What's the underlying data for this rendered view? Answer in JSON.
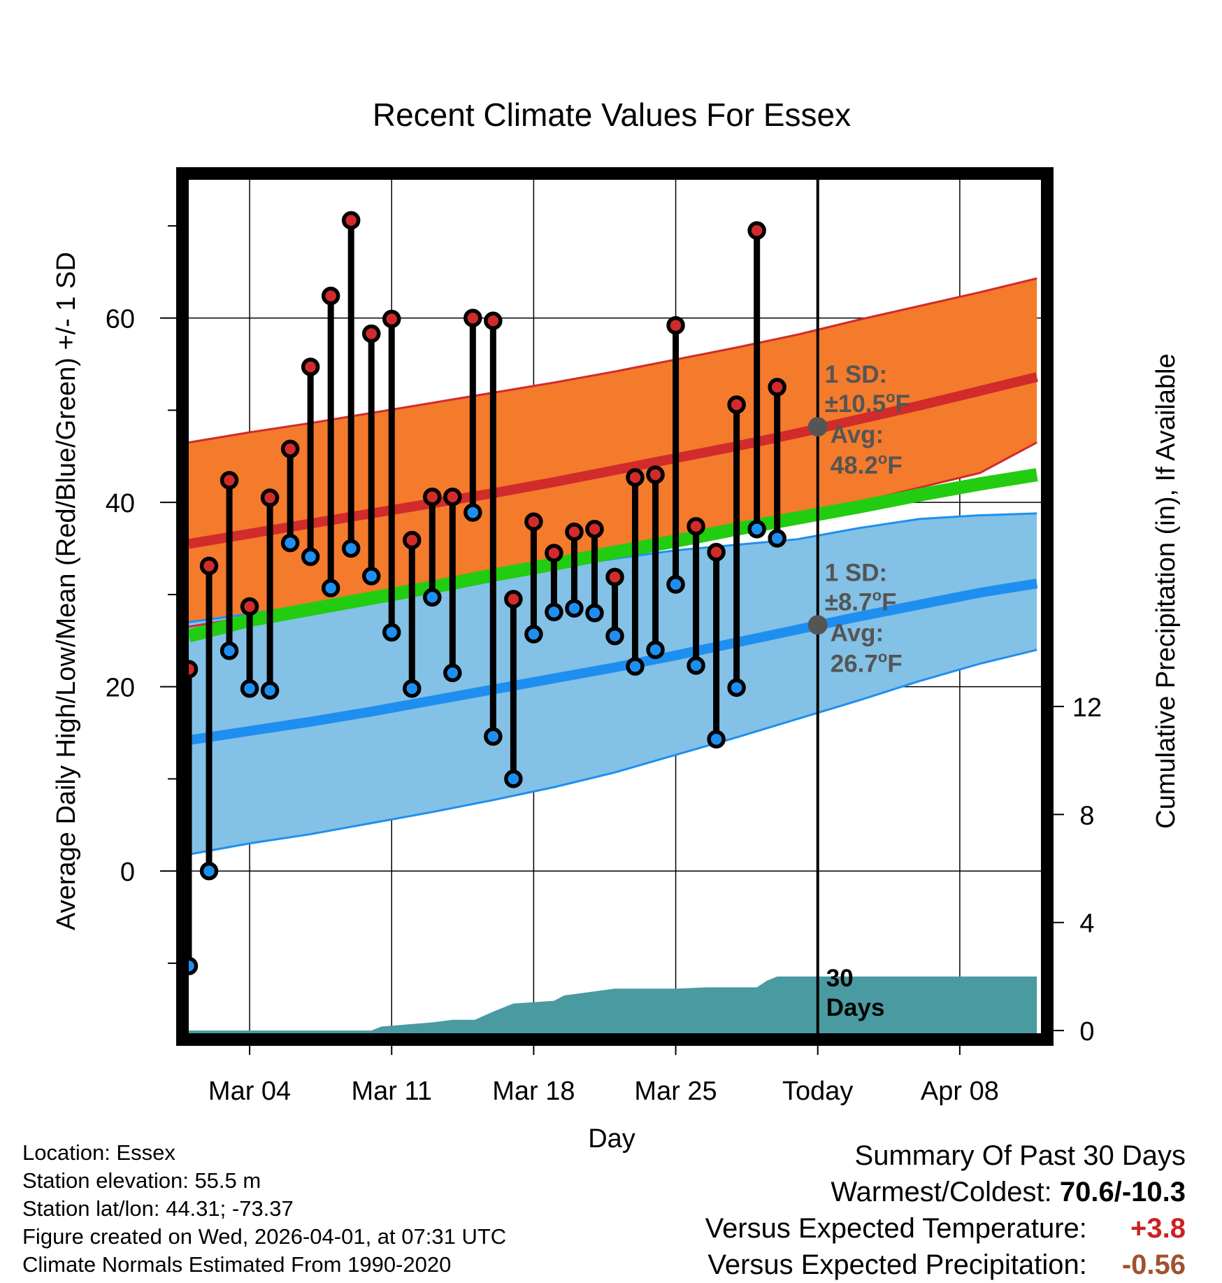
{
  "title": "Recent Climate Values For Essex",
  "colors": {
    "high_band": "#f47a2c",
    "high_line": "#d12b2b",
    "low_band": "#84c1e6",
    "low_line": "#1e8ff0",
    "mean_line": "#22cc11",
    "precip_fill": "#4a9aa2",
    "high_marker": "#d12b2b",
    "low_marker": "#1e8ff0",
    "today_marker": "#555555",
    "annotation": "#555555",
    "temp_anomaly": "#cc2222",
    "precip_anomaly": "#a0522d"
  },
  "chart_data": {
    "type": "line",
    "title": "Recent Climate Values For Essex",
    "xlabel": "Day",
    "ylabel": "Average Daily High/Low/Mean (Red/Blue/Green) +/- 1 SD",
    "y2label": "Cumulative Precipitation (in), If Available",
    "xlim": [
      0,
      42
    ],
    "ylim": [
      -17.6,
      75
    ],
    "y2lim": [
      -0.1,
      31.5
    ],
    "grid": true,
    "xticks": [
      {
        "x": 3,
        "label": "Mar 04"
      },
      {
        "x": 10,
        "label": "Mar 11"
      },
      {
        "x": 17,
        "label": "Mar 18"
      },
      {
        "x": 24,
        "label": "Mar 25"
      },
      {
        "x": 31,
        "label": "Today"
      },
      {
        "x": 38,
        "label": "Apr 08"
      }
    ],
    "yticks": [
      0,
      20,
      40,
      60
    ],
    "y_minor_ticks": [
      -10,
      10,
      30,
      50,
      70
    ],
    "y2ticks": [
      0,
      4,
      8,
      12
    ],
    "today_x": 31,
    "normals": {
      "x": [
        0,
        3,
        6,
        9,
        12,
        15,
        18,
        21,
        24,
        27,
        30,
        33,
        36,
        39,
        41.8
      ],
      "high_mean": [
        35.5,
        36.6,
        37.7,
        38.8,
        39.9,
        41.0,
        42.2,
        43.5,
        44.8,
        46.1,
        47.5,
        49.0,
        50.5,
        52.1,
        53.6
      ],
      "high_upper": [
        46.5,
        47.6,
        48.6,
        49.7,
        50.8,
        51.9,
        53.0,
        54.2,
        55.5,
        56.8,
        58.2,
        59.8,
        61.3,
        62.8,
        64.3
      ],
      "high_lower": [
        26.5,
        27.6,
        28.7,
        29.8,
        30.9,
        32.0,
        33.2,
        34.4,
        35.7,
        37.0,
        38.5,
        40.0,
        41.6,
        43.2,
        46.5
      ],
      "low_mean": [
        14.2,
        15.2,
        16.2,
        17.3,
        18.5,
        19.7,
        20.9,
        22.1,
        23.4,
        24.8,
        26.2,
        27.6,
        28.9,
        30.2,
        31.2
      ],
      "low_upper": [
        27.0,
        27.9,
        28.9,
        29.9,
        30.9,
        31.9,
        32.9,
        33.9,
        34.8,
        35.4,
        36.0,
        37.2,
        38.2,
        38.6,
        38.8
      ],
      "low_lower": [
        1.8,
        3.0,
        4.0,
        5.2,
        6.4,
        7.7,
        9.1,
        10.7,
        12.6,
        14.5,
        16.5,
        18.5,
        20.6,
        22.5,
        24.0
      ],
      "mean_line": [
        25.5,
        27.2,
        28.4,
        29.6,
        30.8,
        32.1,
        33.3,
        34.6,
        35.8,
        37.1,
        38.3,
        39.5,
        40.8,
        42.0,
        43.0
      ]
    },
    "series": [
      {
        "name": "High",
        "x": [
          0,
          1,
          2,
          3,
          4,
          5,
          6,
          7,
          8,
          9,
          10,
          11,
          12,
          13,
          14,
          15,
          16,
          17,
          18,
          19,
          20,
          21,
          22,
          23,
          24,
          25,
          26,
          27,
          28,
          29,
          30
        ],
        "values": [
          21.9,
          33.1,
          42.4,
          28.7,
          40.5,
          45.8,
          54.7,
          62.4,
          70.6,
          58.3,
          59.9,
          35.9,
          40.6,
          40.6,
          60.0,
          59.7,
          29.5,
          37.9,
          34.5,
          36.8,
          37.1,
          31.9,
          42.7,
          43.0,
          59.2,
          37.4,
          34.6,
          50.6,
          69.5,
          52.5,
          null
        ]
      },
      {
        "name": "Low",
        "x": [
          0,
          1,
          2,
          3,
          4,
          5,
          6,
          7,
          8,
          9,
          10,
          11,
          12,
          13,
          14,
          15,
          16,
          17,
          18,
          19,
          20,
          21,
          22,
          23,
          24,
          25,
          26,
          27,
          28,
          29,
          30
        ],
        "values": [
          -10.3,
          0.0,
          23.9,
          19.8,
          19.6,
          35.6,
          34.1,
          30.7,
          35.0,
          32.0,
          25.9,
          19.8,
          29.7,
          21.5,
          38.9,
          14.6,
          10.0,
          25.7,
          28.1,
          28.5,
          28.0,
          25.5,
          22.2,
          24.0,
          31.1,
          22.3,
          14.3,
          19.9,
          37.1,
          36.1,
          null
        ]
      }
    ],
    "precipitation": {
      "name": "Cumulative Precipitation",
      "x": [
        0,
        9,
        9.5,
        12,
        13,
        14.1,
        15,
        16,
        17,
        18,
        18.5,
        20,
        21,
        24,
        25.5,
        28,
        28.5,
        29,
        32,
        41.8
      ],
      "values": [
        0,
        0,
        0.15,
        0.3,
        0.4,
        0.4,
        0.7,
        1.0,
        1.05,
        1.1,
        1.3,
        1.45,
        1.55,
        1.55,
        1.6,
        1.6,
        1.85,
        2.0,
        2.0,
        2.0
      ]
    },
    "annotations": {
      "high_sd_title": "1 SD:",
      "high_sd_value": "±10.5",
      "high_avg_title": "Avg:",
      "high_avg_value": "48.2",
      "high_avg_at": 48.2,
      "low_sd_title": "1 SD:",
      "low_sd_value": "±8.7",
      "low_avg_title": "Avg:",
      "low_avg_value": "26.7",
      "low_avg_at": 26.7,
      "degree_symbol": "o",
      "unit": "F",
      "days_count": "30",
      "days_word": "Days"
    }
  },
  "info": {
    "location": "Location: Essex",
    "elevation": "Station elevation: 55.5 m",
    "latlon": "Station lat/lon: 44.31; -73.37",
    "created": "Figure created on Wed, 2026-04-01, at 07:31 UTC",
    "normals": "Climate Normals Estimated From 1990-2020"
  },
  "summary": {
    "heading": "Summary Of Past 30 Days",
    "warmest_coldest_label": "Warmest/Coldest:",
    "warmest_coldest_value": "70.6/-10.3",
    "temp_label": "Versus Expected Temperature:",
    "temp_value": "+3.8",
    "precip_label": "Versus Expected Precipitation:",
    "precip_value": "-0.56"
  }
}
